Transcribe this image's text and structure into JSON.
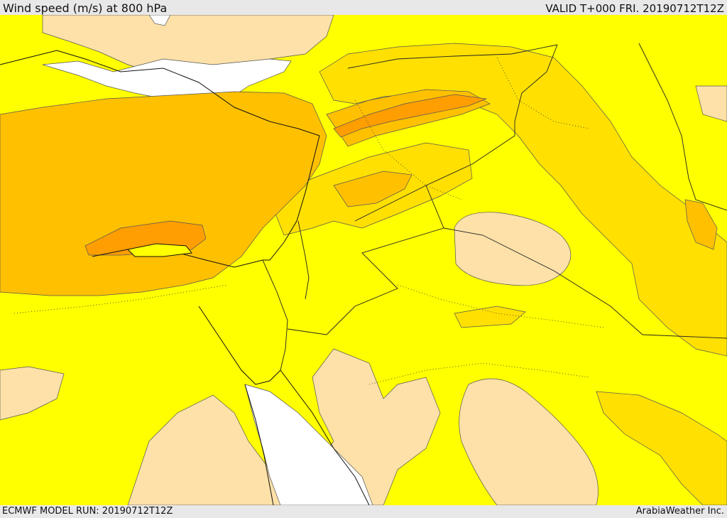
{
  "header": {
    "title": "Wind speed (m/s) at 800 hPa",
    "valid": "VALID T+000 FRI. 20190712T12Z"
  },
  "footer": {
    "run": "ECMWF MODEL RUN: 20190712T12Z",
    "brand": "ArabiaWeather Inc."
  },
  "colors": {
    "calm": "#ffffff",
    "light": "#fde1a8",
    "low": "#ffff00",
    "moderate": "#ffe000",
    "fresh": "#ffc000",
    "strong": "#ff9e00",
    "border": "#222222",
    "contour": "#555555"
  }
}
